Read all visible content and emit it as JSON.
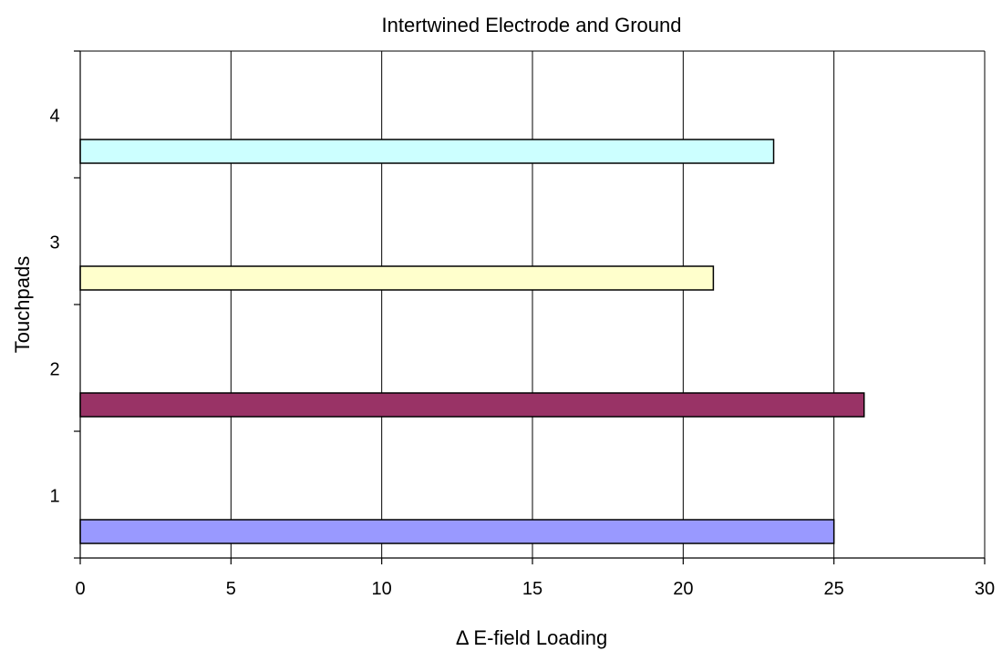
{
  "chart_data": {
    "type": "bar",
    "orientation": "horizontal",
    "title": "Intertwined Electrode and Ground",
    "xlabel": "Δ E-field Loading",
    "ylabel": "Touchpads",
    "xlim": [
      0,
      30
    ],
    "x_ticks": [
      "0",
      "5",
      "10",
      "15",
      "20",
      "25",
      "30"
    ],
    "categories": [
      "1",
      "2",
      "3",
      "4"
    ],
    "values": [
      25,
      26,
      21,
      23
    ],
    "bar_colors": [
      "#9999ff",
      "#993366",
      "#ffffcc",
      "#ccffff"
    ],
    "grid": "vertical",
    "legend": "none"
  }
}
